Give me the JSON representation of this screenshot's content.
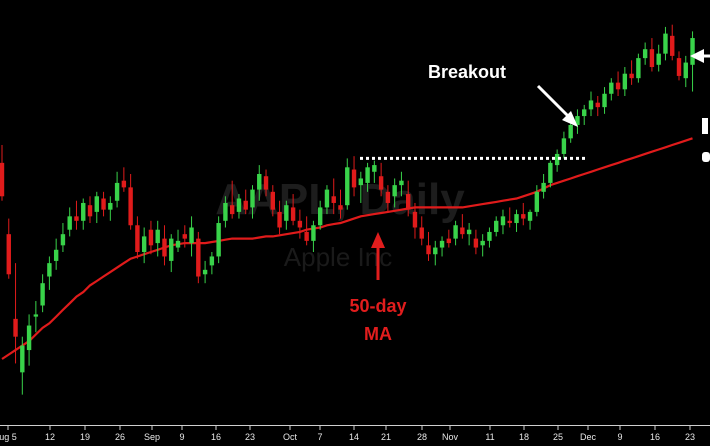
{
  "chart_data": {
    "type": "candlestick",
    "watermark": {
      "symbol": "AAPL, Daily",
      "company": "Apple Inc"
    },
    "x_ticks": [
      "ug 5",
      "12",
      "19",
      "26",
      "Sep",
      "9",
      "16",
      "23",
      "Oct",
      "7",
      "14",
      "21",
      "28",
      "Nov",
      "11",
      "18",
      "25",
      "Dec",
      "9",
      "16",
      "23"
    ],
    "y_range": [
      103.0,
      120.5
    ],
    "colors": {
      "up": "#39d34a",
      "down": "#e01b1b",
      "ma": "#e01b1b",
      "annotation": "#ffffff",
      "annotation_red": "#e11d1d"
    },
    "annotations": {
      "breakout": "Breakout",
      "ma_label_1": "50-day",
      "ma_label_2": "MA",
      "breakout_level": 114.2
    },
    "candles": [
      [
        114.0,
        114.8,
        112.3,
        112.5
      ],
      [
        110.8,
        111.5,
        108.8,
        109.0
      ],
      [
        107.0,
        109.5,
        105.0,
        106.2
      ],
      [
        104.6,
        106.2,
        103.6,
        105.8
      ],
      [
        105.6,
        107.2,
        104.9,
        106.7
      ],
      [
        107.1,
        107.8,
        106.4,
        107.2
      ],
      [
        107.6,
        109.0,
        107.3,
        108.6
      ],
      [
        108.9,
        109.8,
        108.3,
        109.5
      ],
      [
        109.6,
        110.6,
        109.2,
        110.1
      ],
      [
        110.3,
        111.3,
        110.0,
        110.8
      ],
      [
        111.0,
        112.0,
        110.7,
        111.6
      ],
      [
        111.6,
        112.3,
        111.0,
        111.4
      ],
      [
        111.4,
        112.4,
        111.0,
        112.2
      ],
      [
        112.1,
        112.5,
        111.3,
        111.6
      ],
      [
        111.8,
        112.7,
        111.3,
        112.5
      ],
      [
        112.4,
        112.7,
        111.6,
        111.9
      ],
      [
        111.9,
        112.5,
        111.4,
        112.2
      ],
      [
        112.3,
        113.6,
        112.0,
        113.1
      ],
      [
        113.2,
        113.8,
        112.7,
        112.9
      ],
      [
        112.9,
        113.5,
        111.0,
        111.2
      ],
      [
        111.2,
        111.6,
        109.7,
        110.0
      ],
      [
        110.0,
        111.1,
        109.5,
        110.7
      ],
      [
        111.0,
        111.4,
        109.9,
        110.3
      ],
      [
        110.4,
        111.4,
        109.8,
        111.0
      ],
      [
        110.6,
        111.2,
        109.4,
        109.8
      ],
      [
        109.6,
        110.8,
        109.1,
        110.6
      ],
      [
        110.2,
        111.0,
        110.0,
        110.5
      ],
      [
        110.8,
        111.2,
        110.2,
        110.6
      ],
      [
        110.4,
        111.6,
        109.8,
        111.1
      ],
      [
        110.6,
        110.9,
        108.6,
        108.9
      ],
      [
        109.0,
        109.6,
        108.6,
        109.2
      ],
      [
        109.4,
        110.0,
        109.0,
        109.8
      ],
      [
        109.8,
        111.6,
        109.5,
        111.3
      ],
      [
        111.4,
        112.5,
        111.1,
        112.2
      ],
      [
        112.1,
        113.2,
        111.5,
        111.7
      ],
      [
        111.8,
        112.6,
        111.5,
        112.4
      ],
      [
        112.3,
        112.8,
        111.7,
        111.9
      ],
      [
        112.0,
        113.0,
        111.5,
        112.8
      ],
      [
        112.8,
        113.9,
        112.3,
        113.5
      ],
      [
        113.4,
        113.7,
        112.5,
        112.8
      ],
      [
        112.7,
        113.0,
        111.6,
        111.9
      ],
      [
        111.8,
        112.3,
        110.8,
        111.1
      ],
      [
        111.4,
        112.3,
        111.0,
        112.1
      ],
      [
        112.0,
        112.6,
        111.2,
        111.4
      ],
      [
        111.4,
        111.9,
        110.6,
        111.1
      ],
      [
        110.9,
        111.6,
        110.3,
        110.5
      ],
      [
        110.5,
        111.4,
        110.0,
        111.2
      ],
      [
        111.2,
        112.3,
        111.0,
        112.0
      ],
      [
        112.0,
        113.0,
        111.7,
        112.8
      ],
      [
        112.5,
        113.3,
        111.7,
        112.2
      ],
      [
        112.1,
        112.8,
        111.5,
        111.9
      ],
      [
        112.1,
        114.2,
        111.9,
        113.8
      ],
      [
        113.7,
        114.3,
        112.5,
        112.9
      ],
      [
        113.0,
        113.6,
        112.2,
        113.3
      ],
      [
        113.1,
        114.0,
        112.7,
        113.8
      ],
      [
        113.6,
        114.1,
        113.1,
        113.9
      ],
      [
        113.4,
        114.0,
        112.5,
        112.8
      ],
      [
        112.7,
        113.0,
        111.8,
        112.2
      ],
      [
        112.5,
        113.3,
        112.0,
        113.0
      ],
      [
        113.0,
        113.6,
        112.5,
        113.2
      ],
      [
        112.6,
        113.2,
        111.6,
        111.9
      ],
      [
        111.8,
        112.2,
        110.6,
        111.1
      ],
      [
        111.1,
        111.6,
        110.3,
        110.6
      ],
      [
        110.3,
        110.9,
        109.6,
        109.9
      ],
      [
        109.9,
        110.5,
        109.4,
        110.2
      ],
      [
        110.2,
        110.7,
        109.8,
        110.5
      ],
      [
        110.6,
        111.0,
        110.2,
        110.4
      ],
      [
        110.6,
        111.4,
        110.3,
        111.2
      ],
      [
        111.1,
        111.7,
        110.6,
        110.8
      ],
      [
        110.8,
        111.3,
        110.3,
        111.0
      ],
      [
        110.6,
        111.0,
        109.9,
        110.2
      ],
      [
        110.3,
        110.8,
        109.8,
        110.5
      ],
      [
        110.5,
        111.1,
        110.2,
        110.9
      ],
      [
        110.9,
        111.6,
        110.7,
        111.4
      ],
      [
        111.2,
        111.9,
        110.8,
        111.6
      ],
      [
        111.4,
        112.0,
        111.1,
        111.3
      ],
      [
        111.3,
        111.9,
        110.9,
        111.7
      ],
      [
        111.7,
        112.2,
        111.2,
        111.5
      ],
      [
        111.4,
        111.9,
        111.0,
        111.8
      ],
      [
        111.8,
        113.0,
        111.6,
        112.7
      ],
      [
        112.7,
        113.5,
        112.4,
        113.1
      ],
      [
        113.1,
        114.1,
        112.9,
        114.0
      ],
      [
        113.9,
        114.6,
        113.6,
        114.4
      ],
      [
        114.4,
        115.4,
        114.2,
        115.1
      ],
      [
        115.1,
        115.9,
        114.9,
        115.7
      ],
      [
        115.7,
        116.4,
        115.3,
        116.1
      ],
      [
        116.1,
        116.6,
        115.7,
        116.4
      ],
      [
        116.4,
        117.2,
        116.1,
        116.8
      ],
      [
        116.7,
        117.0,
        116.1,
        116.5
      ],
      [
        116.5,
        117.4,
        116.2,
        117.1
      ],
      [
        117.1,
        117.8,
        116.8,
        117.6
      ],
      [
        117.6,
        118.1,
        117.0,
        117.3
      ],
      [
        117.3,
        118.3,
        117.0,
        118.0
      ],
      [
        118.0,
        118.6,
        117.5,
        117.8
      ],
      [
        117.8,
        118.9,
        117.6,
        118.7
      ],
      [
        118.7,
        119.4,
        118.4,
        119.1
      ],
      [
        119.1,
        119.6,
        118.1,
        118.3
      ],
      [
        118.4,
        119.3,
        118.1,
        118.9
      ],
      [
        118.9,
        120.1,
        118.6,
        119.8
      ],
      [
        119.7,
        120.2,
        118.6,
        118.8
      ],
      [
        118.7,
        119.0,
        117.7,
        117.9
      ],
      [
        117.8,
        118.8,
        117.4,
        118.5
      ],
      [
        118.4,
        119.9,
        117.2,
        119.6
      ]
    ],
    "ma": [
      105.2,
      105.4,
      105.6,
      105.8,
      106.0,
      106.3,
      106.6,
      106.8,
      107.1,
      107.4,
      107.7,
      108.0,
      108.2,
      108.5,
      108.7,
      108.9,
      109.1,
      109.3,
      109.5,
      109.7,
      109.8,
      109.9,
      110.0,
      110.1,
      110.2,
      110.3,
      110.35,
      110.4,
      110.4,
      110.4,
      110.4,
      110.45,
      110.5,
      110.55,
      110.6,
      110.6,
      110.6,
      110.6,
      110.65,
      110.7,
      110.7,
      110.75,
      110.8,
      110.85,
      110.9,
      111.0,
      111.05,
      111.1,
      111.2,
      111.25,
      111.3,
      111.4,
      111.5,
      111.6,
      111.65,
      111.7,
      111.75,
      111.8,
      111.85,
      111.9,
      111.95,
      112.0,
      112.0,
      112.0,
      112.0,
      112.0,
      112.0,
      112.0,
      112.0,
      112.05,
      112.1,
      112.15,
      112.2,
      112.25,
      112.3,
      112.35,
      112.4,
      112.5,
      112.6,
      112.7,
      112.85,
      113.0,
      113.1,
      113.2,
      113.3,
      113.4,
      113.5,
      113.6,
      113.7,
      113.8,
      113.9,
      114.0,
      114.1,
      114.2,
      114.3,
      114.4,
      114.5,
      114.6,
      114.7,
      114.8,
      114.9,
      115.0,
      115.1
    ]
  }
}
